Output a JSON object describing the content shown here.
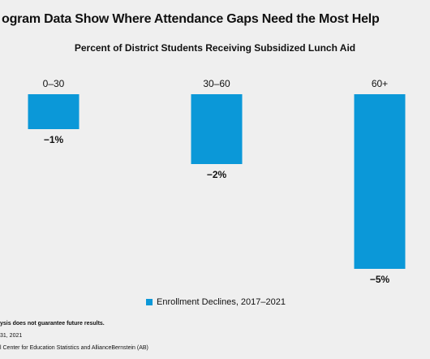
{
  "header": {
    "title": "ogram Data Show Where Attendance Gaps Need the Most Help"
  },
  "chart_data": {
    "type": "bar",
    "title": "Percent of District Students Receiving Subsidized Lunch Aid",
    "categories": [
      "0–30",
      "30–60",
      "60+"
    ],
    "series": [
      {
        "name": "Enrollment Declines, 2017–2021",
        "values": [
          -1,
          -2,
          -5
        ],
        "labels": [
          "−1%",
          "−2%",
          "−5%"
        ]
      }
    ],
    "ylim": [
      -5,
      0
    ],
    "grid": false,
    "legend": "bottom",
    "colors": {
      "bar": "#0b98d8",
      "text": "#111111",
      "background": "#efefef"
    }
  },
  "footnotes": {
    "disclaimer": "ysis does not guarantee future results.",
    "date": "31, 2021",
    "source": "l Center for Education Statistics and AllianceBernstein (AB)"
  }
}
